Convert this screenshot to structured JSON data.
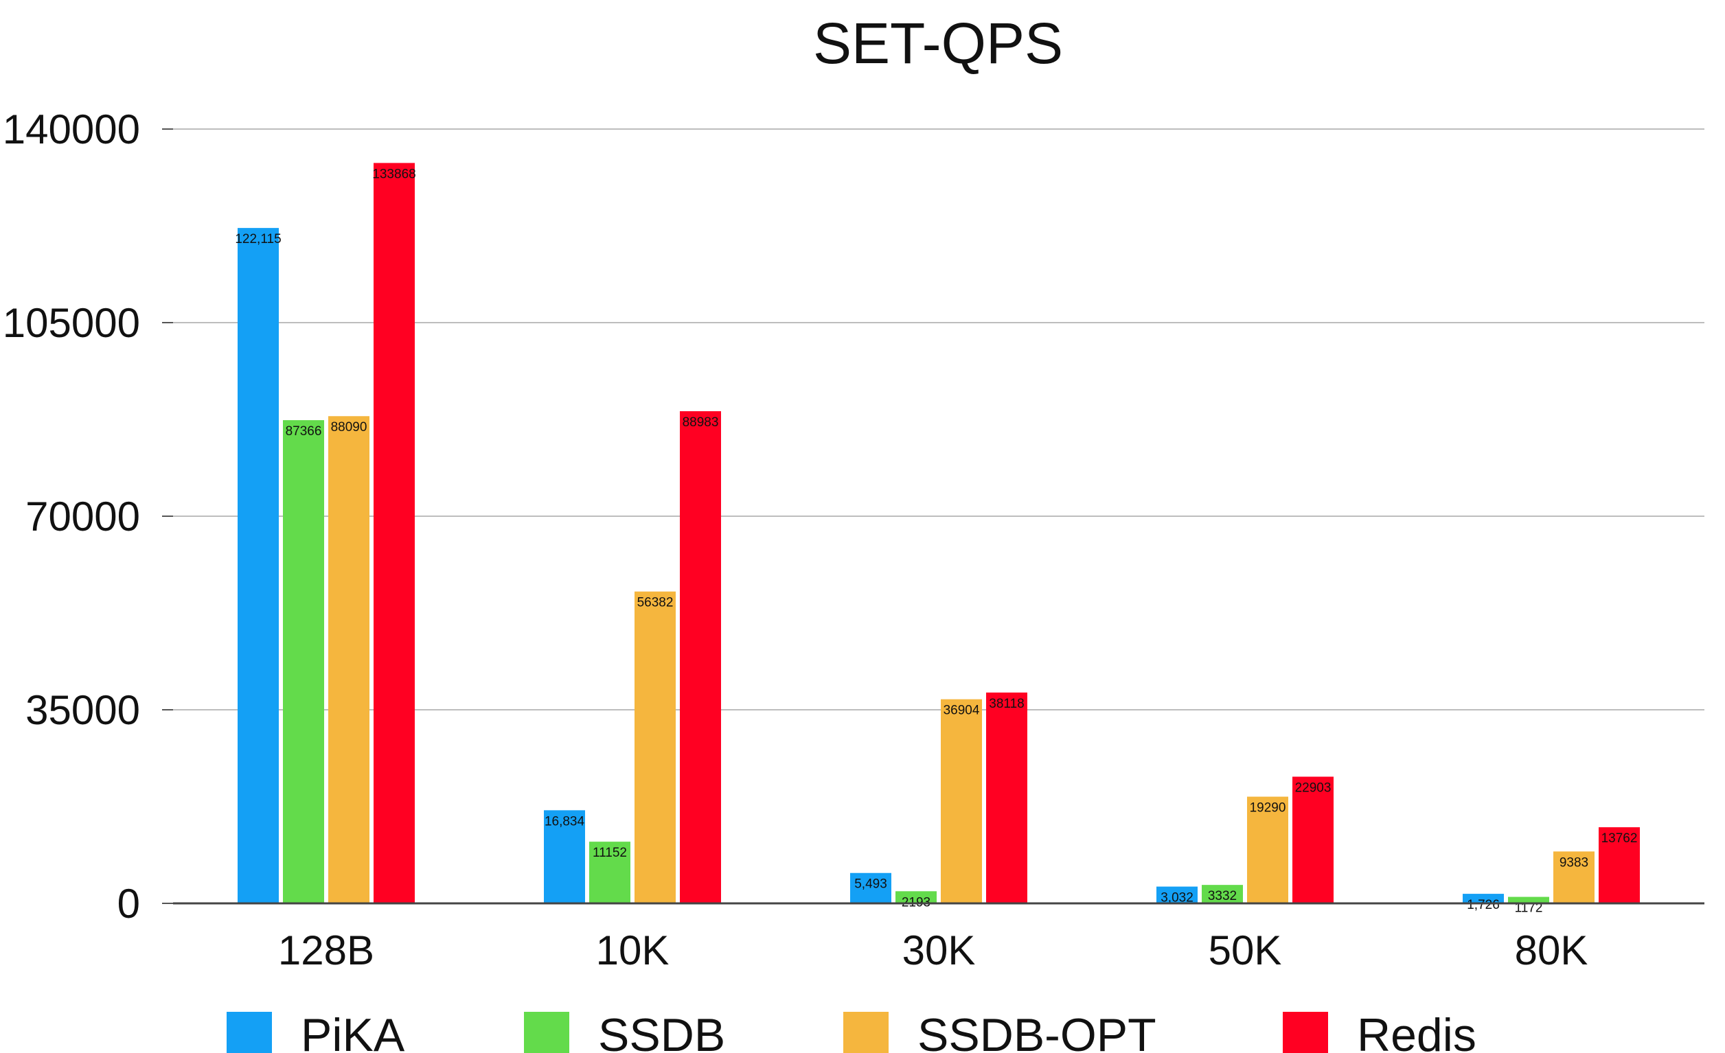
{
  "chart_data": {
    "type": "bar",
    "title": "SET-QPS",
    "xlabel": "",
    "ylabel": "",
    "categories": [
      "128B",
      "10K",
      "30K",
      "50K",
      "80K"
    ],
    "ylim": [
      0,
      140000
    ],
    "yticks": [
      "0",
      "35000",
      "70000",
      "105000",
      "140000"
    ],
    "ytick_values": [
      0,
      35000,
      70000,
      105000,
      140000
    ],
    "grid": true,
    "legend_position": "bottom",
    "series": [
      {
        "name": "PiKA",
        "color": "#14A0F5",
        "values": [
          122115,
          16834,
          5493,
          3032,
          1726
        ],
        "labels": [
          "122,115",
          "16,834",
          "5,493",
          "3,032",
          "1,726"
        ]
      },
      {
        "name": "SSDB",
        "color": "#63DB4B",
        "values": [
          87366,
          11152,
          2193,
          3332,
          1172
        ],
        "labels": [
          "87366",
          "11152",
          "2193",
          "3332",
          "1172"
        ]
      },
      {
        "name": "SSDB-OPT",
        "color": "#F5B63E",
        "values": [
          88090,
          56382,
          36904,
          19290,
          9383
        ],
        "labels": [
          "88090",
          "56382",
          "36904",
          "19290",
          "9383"
        ]
      },
      {
        "name": "Redis",
        "color": "#FF0022",
        "values": [
          133868,
          88983,
          38118,
          22903,
          13762
        ],
        "labels": [
          "133868",
          "88983",
          "38118",
          "22903",
          "13762"
        ]
      }
    ]
  }
}
